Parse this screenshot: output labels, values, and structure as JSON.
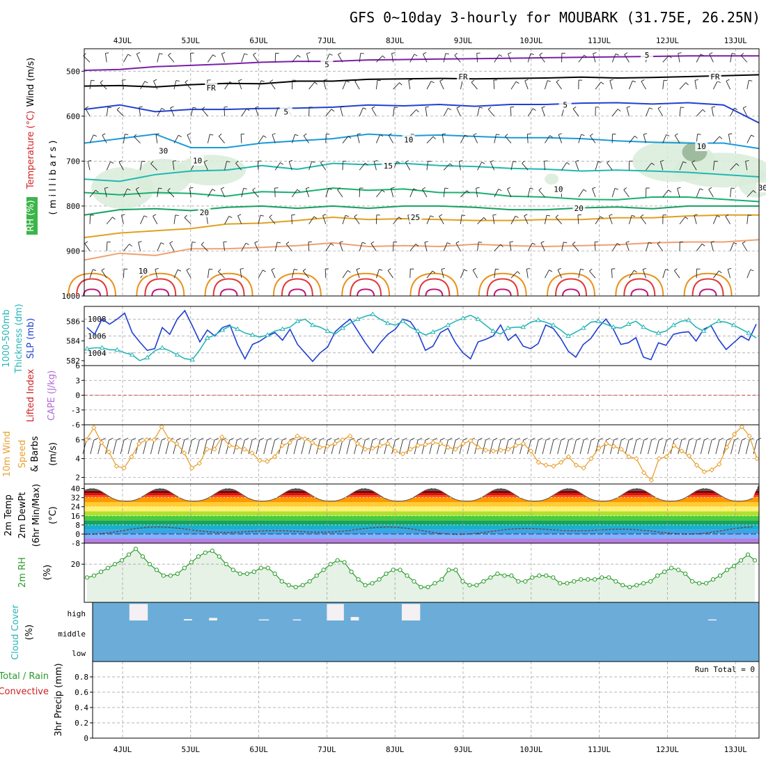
{
  "title": "GFS 0~10day 3-hourly for MOUBARK (31.75E, 26.25N)",
  "dates": [
    "4JUL",
    "5JUL",
    "6JUL",
    "7JUL",
    "8JUL",
    "9JUL",
    "10JUL",
    "11JUL",
    "12JUL",
    "13JUL"
  ],
  "colors": {
    "frame": "#000000",
    "grid": "#9a9a9a",
    "slp": "#1f3fd0",
    "thickness": "#27b5b5",
    "wind_speed": "#e8a030",
    "rh2m": "#2a9a2a",
    "cloud": "#6badd8",
    "lifted": "#d02020",
    "rh_fill": "#3cb54a"
  },
  "chart_data": [
    {
      "id": "upper_air",
      "type": "contour",
      "title": "",
      "ylabels": [
        {
          "text": "Wind (m/s)",
          "color": "#000000"
        },
        {
          "text": "Temperature (°C)",
          "color": "#d02020"
        },
        {
          "text": "RH (%)",
          "color": "#3cb54a"
        },
        {
          "text": "( m i l l i b a r s )",
          "color": "#000000"
        }
      ],
      "ylim": [
        450,
        1000
      ],
      "yticks": [
        500,
        600,
        700,
        800,
        900,
        1000
      ],
      "contour_labels": [
        {
          "text": "5",
          "day": 3.0,
          "p": 488,
          "color": "#7a1fa8"
        },
        {
          "text": "5",
          "day": 7.7,
          "p": 467,
          "color": "#7a1fa8"
        },
        {
          "text": "FR",
          "day": 1.3,
          "p": 540,
          "color": "#000000"
        },
        {
          "text": "FR",
          "day": 5.0,
          "p": 515,
          "color": "#000000"
        },
        {
          "text": "FR",
          "day": 8.7,
          "p": 515,
          "color": "#000000"
        },
        {
          "text": "5",
          "day": 2.4,
          "p": 593,
          "color": "#2040d0"
        },
        {
          "text": "5",
          "day": 6.5,
          "p": 578,
          "color": "#2040d0"
        },
        {
          "text": "10",
          "day": 4.2,
          "p": 655,
          "color": "#1a9ad8"
        },
        {
          "text": "15",
          "day": 3.9,
          "p": 713,
          "color": "#20b8b0"
        },
        {
          "text": "20",
          "day": 1.2,
          "p": 817,
          "color": "#18b070"
        },
        {
          "text": "20",
          "day": 6.7,
          "p": 808,
          "color": "#18b070"
        },
        {
          "text": "25",
          "day": 4.3,
          "p": 828,
          "color": "#e0a020"
        },
        {
          "text": "30",
          "day": 0.6,
          "p": 680,
          "color": "#9a9a9a"
        },
        {
          "text": "10",
          "day": 1.1,
          "p": 702,
          "color": "#9a9a9a"
        },
        {
          "text": "10",
          "day": 6.4,
          "p": 765,
          "color": "#9a9a9a"
        },
        {
          "text": "10",
          "day": 8.5,
          "p": 670,
          "color": "#9a9a9a"
        },
        {
          "text": "30",
          "day": 9.4,
          "p": 762,
          "color": "#9a9a9a"
        },
        {
          "text": "10",
          "day": 0.3,
          "p": 947,
          "color": "#9a9a9a"
        }
      ],
      "isotherms": [
        {
          "name": "-5",
          "color": "#7a1fa8",
          "p": [
            498,
            496,
            490,
            487,
            484,
            480,
            478,
            478,
            475,
            474,
            473,
            472,
            471,
            470,
            469,
            468,
            467,
            466,
            466,
            466
          ]
        },
        {
          "name": "FR",
          "color": "#000000",
          "p": [
            533,
            532,
            535,
            530,
            527,
            528,
            522,
            522,
            518,
            517,
            516,
            517,
            516,
            515,
            513,
            515,
            514,
            512,
            510,
            508
          ]
        },
        {
          "name": "-5b",
          "color": "#2040d0",
          "p": [
            585,
            575,
            590,
            585,
            585,
            583,
            582,
            580,
            575,
            577,
            574,
            578,
            574,
            574,
            571,
            570,
            573,
            570,
            575,
            615
          ]
        },
        {
          "name": "-10",
          "color": "#1a9ad8",
          "p": [
            660,
            650,
            640,
            670,
            670,
            660,
            655,
            650,
            640,
            644,
            642,
            645,
            648,
            648,
            650,
            655,
            658,
            660,
            660,
            672
          ]
        },
        {
          "name": "15",
          "color": "#20b8b0",
          "p": [
            740,
            745,
            730,
            722,
            720,
            710,
            718,
            705,
            708,
            705,
            710,
            712,
            716,
            718,
            722,
            720,
            722,
            725,
            730,
            735
          ]
        },
        {
          "name": "20",
          "color": "#18b070",
          "p": [
            770,
            775,
            770,
            772,
            778,
            768,
            770,
            760,
            765,
            762,
            770,
            770,
            778,
            780,
            785,
            786,
            780,
            780,
            785,
            790
          ]
        },
        {
          "name": "20b",
          "color": "#14a060",
          "p": [
            820,
            808,
            806,
            810,
            803,
            800,
            805,
            800,
            805,
            800,
            800,
            803,
            808,
            808,
            804,
            802,
            806,
            800,
            800,
            800
          ]
        },
        {
          "name": "25",
          "color": "#e0a020",
          "p": [
            870,
            860,
            855,
            850,
            840,
            838,
            832,
            825,
            830,
            828,
            830,
            832,
            832,
            830,
            830,
            826,
            826,
            822,
            820,
            820
          ]
        },
        {
          "name": "25b",
          "color": "#f0a070",
          "p": [
            920,
            905,
            910,
            895,
            895,
            892,
            888,
            882,
            890,
            888,
            890,
            885,
            888,
            890,
            888,
            886,
            882,
            880,
            880,
            875
          ]
        }
      ]
    },
    {
      "id": "slp_thickness",
      "type": "line",
      "ylabels": [
        {
          "text": "1000-500mb",
          "color": "#27b5b5"
        },
        {
          "text": "Thickness (dm)",
          "color": "#27b5b5"
        },
        {
          "text": "SLP (mb)",
          "color": "#1f3fd0"
        }
      ],
      "left_yticks": [
        582,
        584,
        586
      ],
      "right_yticks": [
        1004,
        1006,
        1008
      ],
      "left_ylim": [
        581.5,
        587.5
      ],
      "right_ylim": [
        1002.5,
        1009.5
      ],
      "series": [
        {
          "axis": "right",
          "values": [
            1007.0,
            1006.2,
            1008.0,
            1007.4,
            1008.0,
            1008.7,
            1006.4,
            1005.3,
            1004.3,
            1004.5,
            1007.0,
            1006.2,
            1008.0,
            1009.0,
            1007.2,
            1005.3,
            1006.7,
            1006.0,
            1007.0,
            1007.3,
            1005.0,
            1003.3,
            1005.0,
            1005.4,
            1006.0,
            1006.4,
            1005.5,
            1006.8,
            1005.0,
            1004.0,
            1003.0,
            1004.0,
            1004.7,
            1006.5,
            1007.3,
            1008.0,
            1006.6,
            1005.2,
            1004.0,
            1005.2,
            1006.2,
            1006.8,
            1008.0,
            1007.7,
            1006.4,
            1004.3,
            1004.8,
            1006.4,
            1006.9,
            1005.2,
            1004.0,
            1003.3,
            1005.3,
            1005.6,
            1006.0,
            1007.3,
            1005.5,
            1006.2,
            1004.8,
            1004.5,
            1005.1,
            1007.3,
            1006.9,
            1005.7,
            1004.2,
            1003.5,
            1005.0,
            1005.7,
            1007.0,
            1008.0,
            1006.8,
            1005.0,
            1005.2,
            1005.8,
            1003.5,
            1003.2,
            1005.2,
            1004.9,
            1006.2,
            1006.4,
            1006.5,
            1005.4,
            1006.8,
            1007.2,
            1005.6,
            1004.4,
            1005.2,
            1006.0,
            1005.5,
            1007.4
          ]
        },
        {
          "axis": "left",
          "markers": "triangle",
          "values": [
            583.2,
            583.3,
            583.3,
            583.1,
            583.1,
            582.8,
            582.6,
            582.0,
            582.3,
            583.0,
            583.3,
            583.0,
            582.6,
            582.2,
            582.1,
            583.1,
            584.3,
            584.6,
            585.1,
            585.5,
            585.2,
            584.8,
            584.6,
            584.4,
            584.6,
            585.0,
            585.2,
            585.4,
            586.0,
            586.2,
            585.6,
            585.4,
            585.0,
            584.7,
            585.3,
            585.8,
            586.2,
            586.5,
            586.7,
            586.2,
            585.8,
            585.6,
            586.0,
            585.4,
            585.0,
            584.6,
            584.9,
            585.2,
            585.6,
            586.0,
            586.3,
            586.6,
            586.2,
            585.6,
            585.0,
            584.7,
            585.3,
            585.4,
            585.4,
            585.9,
            586.1,
            585.9,
            585.6,
            585.1,
            584.5,
            584.9,
            585.3,
            585.9,
            586.0,
            585.7,
            585.4,
            585.3,
            585.7,
            586.0,
            585.4,
            585.0,
            584.8,
            585.0,
            585.6,
            586.0,
            586.1,
            585.4,
            585.0,
            585.6,
            586.0,
            585.9,
            585.6,
            585.2,
            584.8,
            584.3
          ]
        }
      ]
    },
    {
      "id": "cape_li",
      "type": "line",
      "ylabels": [
        {
          "text": "Lifted Index",
          "color": "#d02020"
        },
        {
          "text": "CAPE (J/kg)",
          "color": "#b36ad6"
        }
      ],
      "yticks": [
        "6",
        "3",
        "0",
        "-3",
        "-6"
      ],
      "ylim": [
        -6,
        6
      ],
      "zero_line": 0
    },
    {
      "id": "wind10m",
      "type": "line",
      "ylabels": [
        {
          "text": "10m Wind",
          "color": "#e8a030"
        },
        {
          "text": "Speed",
          "color": "#e8a030"
        },
        {
          "text": "& Barbs",
          "color": "#000000"
        },
        {
          "text": "(m/s)",
          "color": "#000000"
        }
      ],
      "yticks": [
        2,
        4,
        6
      ],
      "ylim": [
        1.3,
        7.6
      ],
      "series": [
        {
          "name": "Speed",
          "values": [
            6.0,
            7.3,
            5.7,
            4.7,
            3.2,
            3.0,
            4.2,
            5.6,
            6.0,
            6.0,
            7.4,
            6.0,
            5.6,
            4.6,
            3.0,
            3.5,
            5.0,
            5.0,
            6.3,
            5.4,
            5.2,
            5.0,
            4.6,
            3.8,
            3.7,
            4.2,
            5.4,
            5.7,
            6.4,
            6.1,
            5.7,
            5.2,
            5.3,
            5.6,
            6.0,
            6.4,
            5.6,
            5.0,
            5.1,
            5.4,
            5.6,
            4.8,
            4.5,
            5.0,
            5.4,
            5.5,
            5.7,
            5.6,
            5.2,
            5.0,
            5.6,
            5.9,
            5.2,
            4.9,
            4.8,
            4.9,
            5.0,
            5.4,
            5.6,
            4.8,
            3.6,
            3.3,
            3.2,
            3.6,
            4.2,
            3.3,
            3.0,
            4.0,
            5.1,
            5.6,
            5.3,
            5.0,
            4.2,
            4.0,
            2.5,
            1.7,
            4.0,
            4.2,
            5.4,
            4.8,
            4.3,
            3.3,
            2.6,
            2.8,
            3.4,
            5.2,
            6.6,
            7.4,
            6.4,
            4.0
          ]
        }
      ]
    },
    {
      "id": "temp2m",
      "type": "area",
      "ylabels": [
        {
          "text": "2m Temp",
          "color": "#000000"
        },
        {
          "text": "2m DewPt",
          "color": "#000000"
        },
        {
          "text": "(6hr Min/Max)",
          "color": "#000000"
        },
        {
          "text": "(°C)",
          "color": "#000000"
        }
      ],
      "yticks": [
        -8,
        0,
        8,
        16,
        24,
        32,
        40
      ],
      "ylim": [
        -8,
        44
      ],
      "band_colors": [
        "#b77ee0",
        "#7fb2ff",
        "#3ea2e8",
        "#17b0d0",
        "#18a35a",
        "#4ccb42",
        "#b0e030",
        "#fff070",
        "#ffcc33",
        "#ff9900",
        "#ff5511",
        "#d81010",
        "#8a0000",
        "#555555"
      ],
      "temperature_daily": {
        "min": 29,
        "max": 40
      },
      "dewpoint_range": [
        -2,
        7
      ]
    },
    {
      "id": "rh2m",
      "type": "area",
      "ylabels": [
        {
          "text": "2m RH",
          "color": "#2a9a2a"
        },
        {
          "text": "(%)",
          "color": "#000000"
        }
      ],
      "yticks": [
        20
      ],
      "ylim": [
        0,
        31
      ],
      "series": [
        {
          "name": "RH",
          "values": [
            13,
            14,
            16,
            18,
            20,
            22,
            25,
            28,
            24,
            20,
            17,
            14,
            14,
            15,
            18,
            21,
            24,
            26,
            27,
            24,
            20,
            17,
            15,
            15,
            16,
            18,
            18,
            15,
            11,
            9,
            8,
            9,
            11,
            14,
            17,
            20,
            22,
            21,
            16,
            12,
            9,
            10,
            12,
            15,
            17,
            17,
            14,
            11,
            8,
            8,
            10,
            12,
            17,
            17,
            11,
            9,
            9,
            11,
            13,
            15,
            14,
            14,
            11,
            11,
            13,
            14,
            14,
            13,
            10,
            10,
            11,
            12,
            12,
            12,
            13,
            13,
            11,
            9,
            8,
            9,
            10,
            11,
            14,
            16,
            18,
            17,
            15,
            11,
            10,
            10,
            12,
            14,
            17,
            19,
            22,
            25,
            22
          ]
        }
      ]
    },
    {
      "id": "cloud",
      "type": "bar",
      "ylabels": [
        {
          "text": "Cloud Cover",
          "color": "#27b5b5"
        },
        {
          "text": "(%)",
          "color": "#000000"
        }
      ],
      "yticks": [
        "high",
        "middle",
        "low"
      ],
      "blanks": [
        {
          "day": 0.65,
          "w": 0.27,
          "level": "high",
          "frac": 0.95
        },
        {
          "day": 1.45,
          "w": 0.12,
          "level": "high",
          "frac": 0.08
        },
        {
          "day": 1.82,
          "w": 0.12,
          "level": "high",
          "frac": 0.15
        },
        {
          "day": 2.55,
          "w": 0.15,
          "level": "high",
          "frac": 0.06
        },
        {
          "day": 3.05,
          "w": 0.12,
          "level": "high",
          "frac": 0.06
        },
        {
          "day": 3.55,
          "w": 0.25,
          "level": "high",
          "frac": 0.95
        },
        {
          "day": 3.9,
          "w": 0.12,
          "level": "high",
          "frac": 0.2
        },
        {
          "day": 4.65,
          "w": 0.27,
          "level": "high",
          "frac": 0.95
        },
        {
          "day": 9.15,
          "w": 0.12,
          "level": "high",
          "frac": 0.06
        }
      ]
    },
    {
      "id": "precip",
      "type": "bar",
      "ylabels": [
        {
          "text": "Total / Rain",
          "color": "#2a9a2a"
        },
        {
          "text": "Convective",
          "color": "#d02020"
        },
        {
          "text": "3hr Precip (mm)",
          "color": "#000000"
        }
      ],
      "yticks": [
        0,
        0.2,
        0.4,
        0.6,
        0.8
      ],
      "ylim": [
        0,
        1.0
      ],
      "annotation": "Run Total = 0",
      "values": []
    }
  ]
}
